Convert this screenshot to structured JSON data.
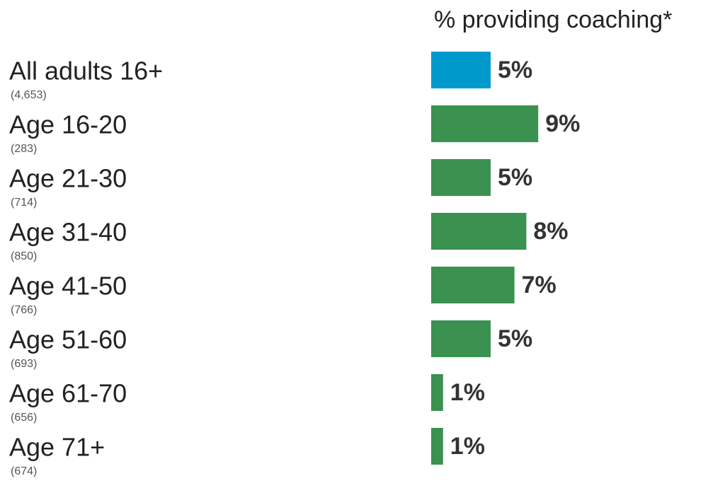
{
  "chart_data": {
    "type": "bar",
    "orientation": "horizontal",
    "title": "% providing coaching*",
    "categories": [
      "All adults 16+",
      "Age 16-20",
      "Age 21-30",
      "Age 31-40",
      "Age 41-50",
      "Age 51-60",
      "Age 61-70",
      "Age 71+"
    ],
    "sample_sizes": [
      "(4,653)",
      "(283)",
      "(714)",
      "(850)",
      "(766)",
      "(693)",
      "(656)",
      "(674)"
    ],
    "values": [
      5,
      9,
      5,
      8,
      7,
      5,
      1,
      1
    ],
    "value_labels": [
      "5%",
      "9%",
      "5%",
      "8%",
      "7%",
      "5%",
      "1%",
      "1%"
    ],
    "colors": [
      "#0099cc",
      "#3a9150",
      "#3a9150",
      "#3a9150",
      "#3a9150",
      "#3a9150",
      "#3a9150",
      "#3a9150"
    ]
  }
}
